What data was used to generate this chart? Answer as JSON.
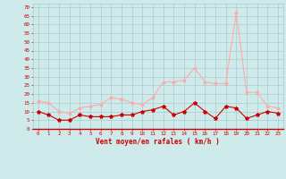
{
  "x": [
    0,
    1,
    2,
    3,
    4,
    5,
    6,
    7,
    8,
    9,
    10,
    11,
    12,
    13,
    14,
    15,
    16,
    17,
    18,
    19,
    20,
    21,
    22,
    23
  ],
  "wind_mean": [
    10,
    8,
    5,
    5,
    8,
    7,
    7,
    7,
    8,
    8,
    10,
    11,
    13,
    8,
    10,
    15,
    10,
    6,
    13,
    12,
    6,
    8,
    10,
    9
  ],
  "wind_gust": [
    16,
    15,
    10,
    9,
    12,
    13,
    14,
    18,
    17,
    15,
    14,
    18,
    27,
    27,
    28,
    35,
    27,
    26,
    26,
    67,
    21,
    21,
    13,
    12
  ],
  "bg_color": "#ceeaea",
  "grid_color": "#aacccc",
  "mean_color": "#cc0000",
  "gust_color": "#ffaaaa",
  "axis_color": "#cc0000",
  "xlabel": "Vent moyen/en rafales ( km/h )",
  "ylabel_ticks": [
    0,
    5,
    10,
    15,
    20,
    25,
    30,
    35,
    40,
    45,
    50,
    55,
    60,
    65,
    70
  ],
  "ylim": [
    0,
    72
  ],
  "xlim": [
    -0.5,
    23.5
  ]
}
